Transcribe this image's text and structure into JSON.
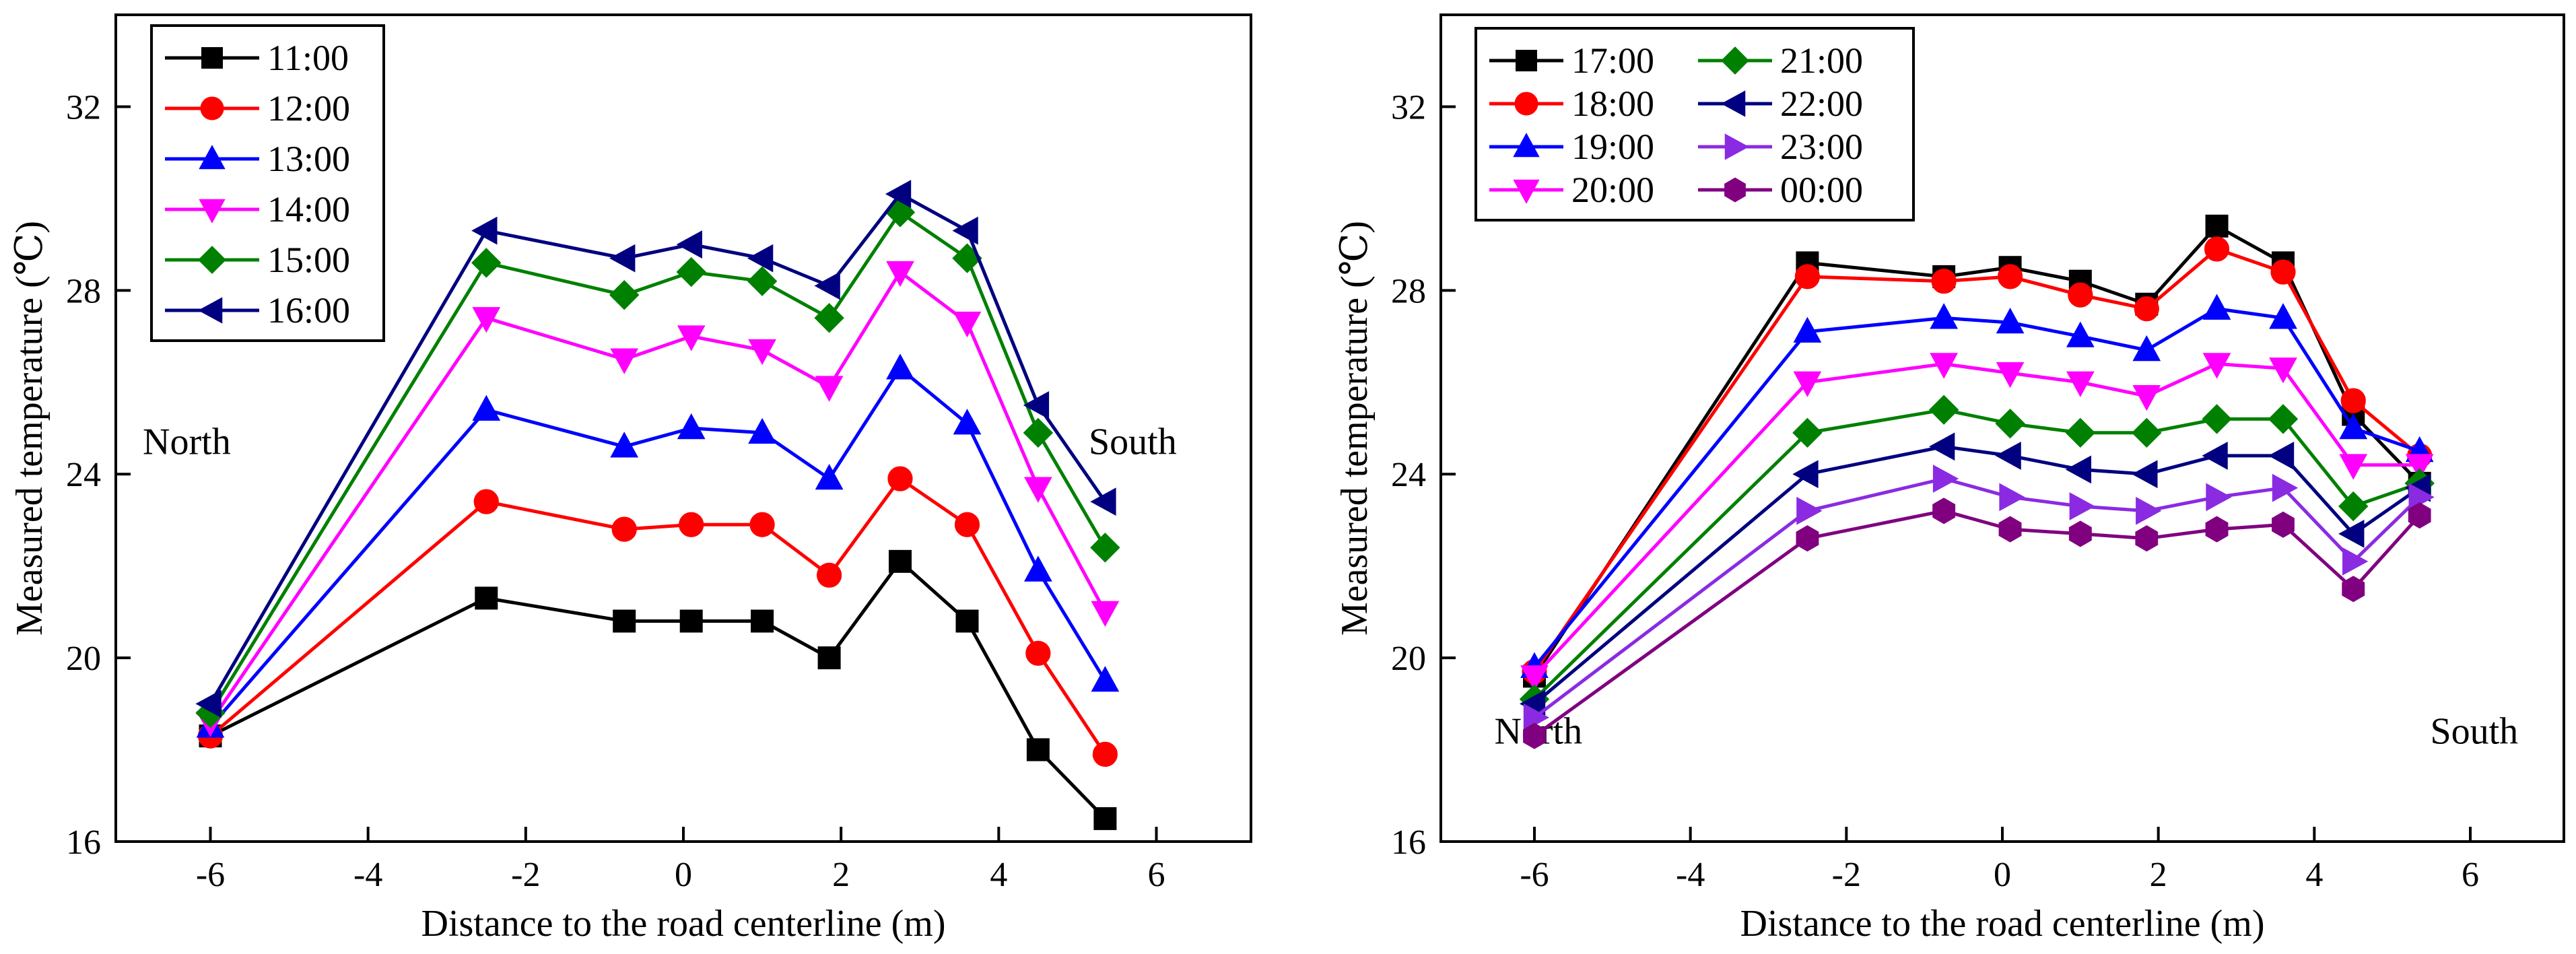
{
  "chart_data": [
    {
      "type": "line",
      "title": "",
      "xlabel": "Distance to the road centerline (m)",
      "ylabel": "Measured temperature (℃)",
      "xlim": [
        -7.2,
        7.2
      ],
      "ylim": [
        16,
        34
      ],
      "xticks": [
        -6,
        -4,
        -2,
        0,
        2,
        4,
        6
      ],
      "yticks": [
        16,
        20,
        24,
        28,
        32
      ],
      "xtick_labels": [
        "-6",
        "-4",
        "-2",
        "0",
        "2",
        "4",
        "6"
      ],
      "ytick_labels": [
        "16",
        "20",
        "24",
        "28",
        "32"
      ],
      "annotations": [
        {
          "text": "North",
          "x": -6.3,
          "y": 24.7
        },
        {
          "text": "South",
          "x": 5.7,
          "y": 24.7
        }
      ],
      "legend": {
        "location": "top-left",
        "columns": 1
      },
      "x": [
        -6,
        -2.5,
        -0.75,
        0.1,
        1.0,
        1.85,
        2.75,
        3.6,
        4.5,
        5.35
      ],
      "series": [
        {
          "name": "11:00",
          "color": "#000000",
          "marker": "square",
          "values": [
            18.3,
            21.3,
            20.8,
            20.8,
            20.8,
            20.0,
            22.1,
            20.8,
            18.0,
            16.5
          ]
        },
        {
          "name": "12:00",
          "color": "#ff0000",
          "marker": "circle",
          "values": [
            18.3,
            23.4,
            22.8,
            22.9,
            22.9,
            21.8,
            23.9,
            22.9,
            20.1,
            17.9
          ]
        },
        {
          "name": "13:00",
          "color": "#0000ff",
          "marker": "triangle-up",
          "values": [
            18.5,
            25.4,
            24.6,
            25.0,
            24.9,
            23.9,
            26.3,
            25.1,
            21.9,
            19.5
          ]
        },
        {
          "name": "14:00",
          "color": "#ff00ff",
          "marker": "triangle-down",
          "values": [
            18.6,
            27.4,
            26.5,
            27.0,
            26.7,
            25.9,
            28.4,
            27.3,
            23.7,
            21.0
          ]
        },
        {
          "name": "15:00",
          "color": "#008000",
          "marker": "diamond",
          "values": [
            18.8,
            28.6,
            27.9,
            28.4,
            28.2,
            27.4,
            29.7,
            28.7,
            24.9,
            22.4
          ]
        },
        {
          "name": "16:00",
          "color": "#000080",
          "marker": "triangle-left",
          "values": [
            19.0,
            29.3,
            28.7,
            29.0,
            28.7,
            28.1,
            30.1,
            29.3,
            25.5,
            23.4
          ]
        }
      ]
    },
    {
      "type": "line",
      "title": "",
      "xlabel": "Distance to the road centerline (m)",
      "ylabel": "Measured temperature (℃)",
      "xlim": [
        -7.2,
        7.2
      ],
      "ylim": [
        16,
        34
      ],
      "xticks": [
        -6,
        -4,
        -2,
        0,
        2,
        4,
        6
      ],
      "yticks": [
        16,
        20,
        24,
        28,
        32
      ],
      "xtick_labels": [
        "-6",
        "-4",
        "-2",
        "0",
        "2",
        "4",
        "6"
      ],
      "ytick_labels": [
        "16",
        "20",
        "24",
        "28",
        "32"
      ],
      "annotations": [
        {
          "text": "North",
          "x": -5.95,
          "y": 18.4
        },
        {
          "text": "South",
          "x": 6.05,
          "y": 18.4
        }
      ],
      "legend": {
        "location": "top-left",
        "columns": 2
      },
      "x": [
        -6,
        -2.5,
        -0.75,
        0.1,
        1.0,
        1.85,
        2.75,
        3.6,
        4.5,
        5.35
      ],
      "series": [
        {
          "name": "17:00",
          "color": "#000000",
          "marker": "square",
          "values": [
            19.6,
            28.6,
            28.3,
            28.5,
            28.2,
            27.7,
            29.4,
            28.6,
            25.3,
            23.8
          ]
        },
        {
          "name": "18:00",
          "color": "#ff0000",
          "marker": "circle",
          "values": [
            19.7,
            28.3,
            28.2,
            28.3,
            27.9,
            27.6,
            28.9,
            28.4,
            25.6,
            24.4
          ]
        },
        {
          "name": "19:00",
          "color": "#0000ff",
          "marker": "triangle-up",
          "values": [
            19.8,
            27.1,
            27.4,
            27.3,
            27.0,
            26.7,
            27.6,
            27.4,
            25.0,
            24.5
          ]
        },
        {
          "name": "20:00",
          "color": "#ff00ff",
          "marker": "triangle-down",
          "values": [
            19.6,
            26.0,
            26.4,
            26.2,
            26.0,
            25.7,
            26.4,
            26.3,
            24.2,
            24.2
          ]
        },
        {
          "name": "21:00",
          "color": "#008000",
          "marker": "diamond",
          "values": [
            19.1,
            24.9,
            25.4,
            25.1,
            24.9,
            24.9,
            25.2,
            25.2,
            23.3,
            23.8
          ]
        },
        {
          "name": "22:00",
          "color": "#000080",
          "marker": "triangle-left",
          "values": [
            19.0,
            24.0,
            24.6,
            24.4,
            24.1,
            24.0,
            24.4,
            24.4,
            22.7,
            23.7
          ]
        },
        {
          "name": "23:00",
          "color": "#8a2be2",
          "marker": "triangle-right",
          "values": [
            18.7,
            23.2,
            23.9,
            23.5,
            23.3,
            23.2,
            23.5,
            23.7,
            22.1,
            23.5
          ]
        },
        {
          "name": "00:00",
          "color": "#800080",
          "marker": "hexagon",
          "values": [
            18.3,
            22.6,
            23.2,
            22.8,
            22.7,
            22.6,
            22.8,
            22.9,
            21.5,
            23.1
          ]
        }
      ]
    }
  ]
}
